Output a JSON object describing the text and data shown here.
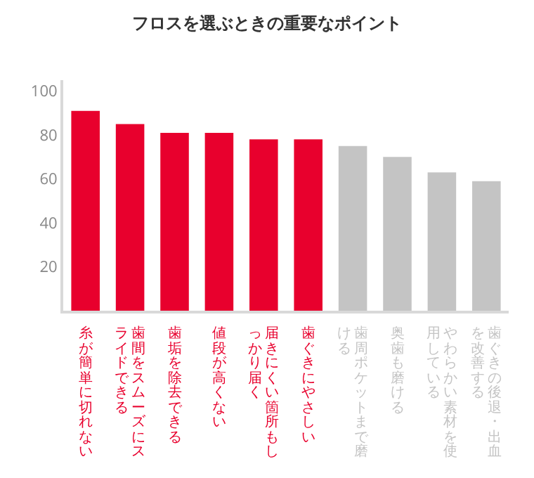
{
  "chart_data": {
    "type": "bar",
    "title": "フロスを選ぶときの重要なポイント",
    "categories": [
      "糸が簡単に切れない",
      "歯間をスムーズにスライドできる",
      "歯垢を除去できる",
      "値段が高くない",
      "届きにくい箇所もしっかり届く",
      "歯ぐきにやさしい",
      "歯周ポケットまで磨ける",
      "奥歯も磨ける",
      "やわらかい素材を使用している",
      "歯ぐきの後退・出血を改善する"
    ],
    "values": [
      91,
      85,
      81,
      81,
      78,
      78,
      75,
      70,
      63,
      59
    ],
    "colors": [
      "#e8002d",
      "#e8002d",
      "#e8002d",
      "#e8002d",
      "#e8002d",
      "#e8002d",
      "#c4c4c4",
      "#c4c4c4",
      "#c4c4c4",
      "#c4c4c4"
    ],
    "ylim": [
      0,
      105
    ],
    "yticks": [
      20,
      40,
      60,
      80,
      100
    ],
    "grid": false
  }
}
